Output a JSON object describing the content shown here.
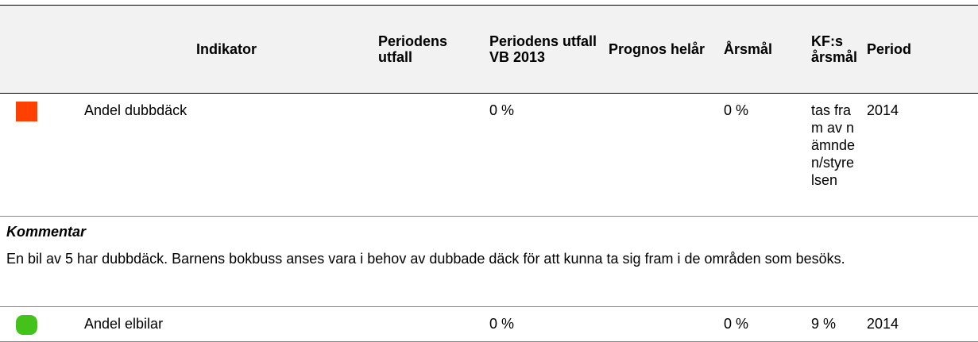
{
  "table": {
    "header": [
      "Indikator",
      "Periodens utfall",
      "Periodens utfall VB 2013",
      "Prognos helår",
      "Årsmål",
      "KF:s årsmål",
      "Period"
    ],
    "rows": [
      {
        "indikator": "Andel dubbdäck",
        "utfall_vb_2013": "0 %",
        "arsmal": "0 %",
        "kf_arsmal": "tas fram av nämnden/styrelsen",
        "period": "2014",
        "comment_title": "Kommentar",
        "comment": "En bil av 5 har dubbdäck. Barnens bokbuss anses vara i behov av dubbade däck för att kunna ta sig fram i de områden som besöks."
      },
      {
        "indikator": "Andel elbilar",
        "utfall_vb_2013": "0 %",
        "arsmal": "0 %",
        "kf_arsmal": "9 %",
        "period": "2014"
      }
    ]
  }
}
